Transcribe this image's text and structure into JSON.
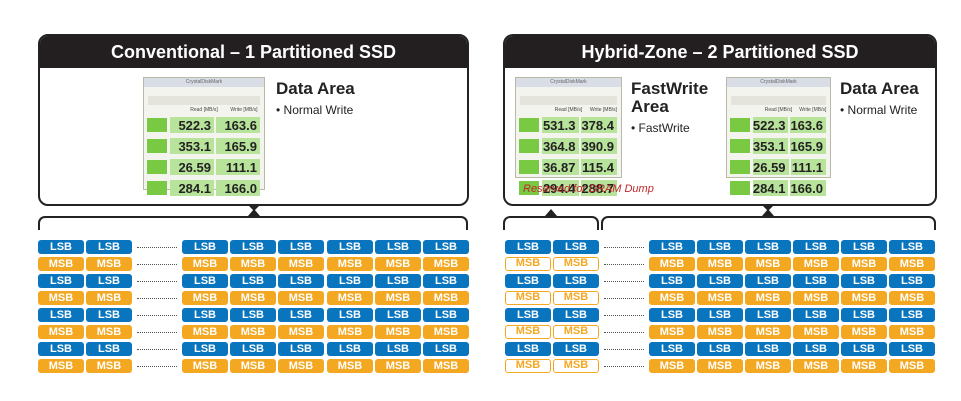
{
  "left_panel": {
    "title": "Conventional – 1 Partitioned SSD",
    "data_area": {
      "title": "Data Area",
      "bullet": "Normal Write"
    },
    "benchmark": {
      "window_title": "CrystalDiskMark",
      "header_read": "Read [MB/s]",
      "header_write": "Write [MB/s]",
      "rows": [
        [
          "522.3",
          "163.6"
        ],
        [
          "353.1",
          "165.9"
        ],
        [
          "26.59",
          "111.1"
        ],
        [
          "284.1",
          "166.0"
        ]
      ]
    }
  },
  "right_panel": {
    "title": "Hybrid-Zone – 2 Partitioned SSD",
    "fastwrite_area": {
      "title_line1": "FastWrite",
      "title_line2": "Area",
      "bullet": "FastWrite"
    },
    "data_area": {
      "title": "Data Area",
      "bullet": "Normal Write"
    },
    "reserved_note": "Reserved for DRAM Dump",
    "fastwrite_benchmark": {
      "window_title": "CrystalDiskMark",
      "header_read": "Read [MB/s]",
      "header_write": "Write [MB/s]",
      "rows": [
        [
          "531.3",
          "378.4"
        ],
        [
          "364.8",
          "390.9"
        ],
        [
          "36.87",
          "115.4"
        ],
        [
          "294.4",
          "288.7"
        ]
      ]
    },
    "data_benchmark": {
      "window_title": "CrystalDiskMark",
      "header_read": "Read [MB/s]",
      "header_write": "Write [MB/s]",
      "rows": [
        [
          "522.3",
          "163.6"
        ],
        [
          "353.1",
          "165.9"
        ],
        [
          "26.59",
          "111.1"
        ],
        [
          "284.1",
          "166.0"
        ]
      ]
    }
  },
  "cell_labels": {
    "lsb": "LSB",
    "msb": "MSB"
  },
  "row_types": [
    "LSB",
    "MSB",
    "LSB",
    "MSB",
    "LSB",
    "MSB",
    "LSB",
    "MSB"
  ],
  "colors": {
    "lsb": "#0a75bf",
    "msb": "#f4a721",
    "header_bg": "#231f20",
    "reserved_text": "#c0282d"
  }
}
